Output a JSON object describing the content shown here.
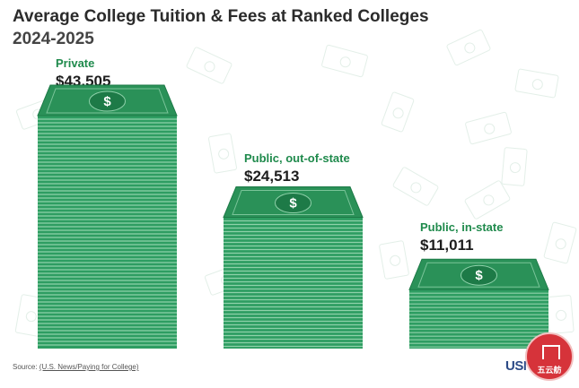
{
  "chart_data": {
    "type": "bar",
    "title": "Average College Tuition & Fees at Ranked Colleges",
    "subtitle": "2024-2025",
    "categories": [
      "Private",
      "Public, out-of-state",
      "Public, in-state"
    ],
    "values": [
      43505,
      24513,
      11011
    ],
    "value_labels": [
      "$43,505",
      "$24,513",
      "$11,011"
    ],
    "bar_style": "stacks of dollar bills",
    "colors": {
      "bill": "#2e9d62",
      "bill_top": "#2a9158",
      "bill_edge": "#1d7a47",
      "stripe": "#8fd1aa",
      "label": "#1f8a4c"
    }
  },
  "source": {
    "prefix": "Source: ",
    "link_text": "(U.S. News/Paying for College)"
  },
  "logo_text": "USN",
  "seal_text": "五云舫"
}
